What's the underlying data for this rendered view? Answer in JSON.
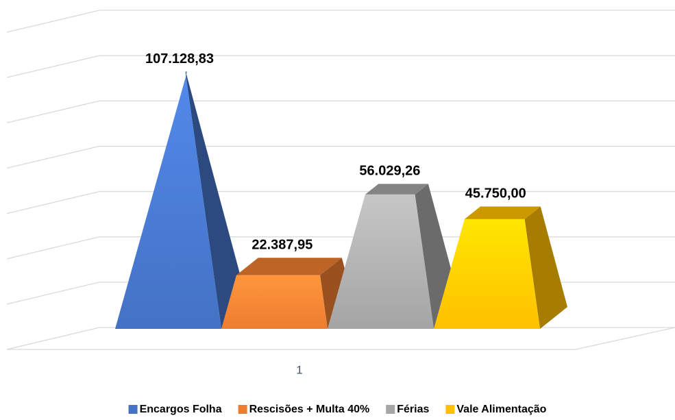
{
  "chart_data": {
    "type": "bar3d",
    "categories": [
      "1"
    ],
    "series": [
      {
        "name": "Encargos Folha",
        "color": "#4472c4",
        "shape": "pyramid",
        "values": [
          107128.83
        ],
        "value_labels": [
          "107.128,83"
        ]
      },
      {
        "name": "Rescisões + Multa 40%",
        "color": "#ed7d31",
        "shape": "pyramid",
        "values": [
          22387.95
        ],
        "value_labels": [
          "22.387,95"
        ]
      },
      {
        "name": "Férias",
        "color": "#a5a5a5",
        "shape": "pyramid",
        "values": [
          56029.26
        ],
        "value_labels": [
          "56.029,26"
        ]
      },
      {
        "name": "Vale Alimentação",
        "color": "#ffc000",
        "shape": "pyramid",
        "values": [
          45750.0
        ],
        "value_labels": [
          "45.750,00"
        ]
      }
    ],
    "ylim": [
      0,
      140000
    ],
    "yticks": [
      0,
      20000,
      40000,
      60000,
      80000,
      100000,
      120000,
      140000
    ],
    "grid": true,
    "legend": "bottom"
  }
}
